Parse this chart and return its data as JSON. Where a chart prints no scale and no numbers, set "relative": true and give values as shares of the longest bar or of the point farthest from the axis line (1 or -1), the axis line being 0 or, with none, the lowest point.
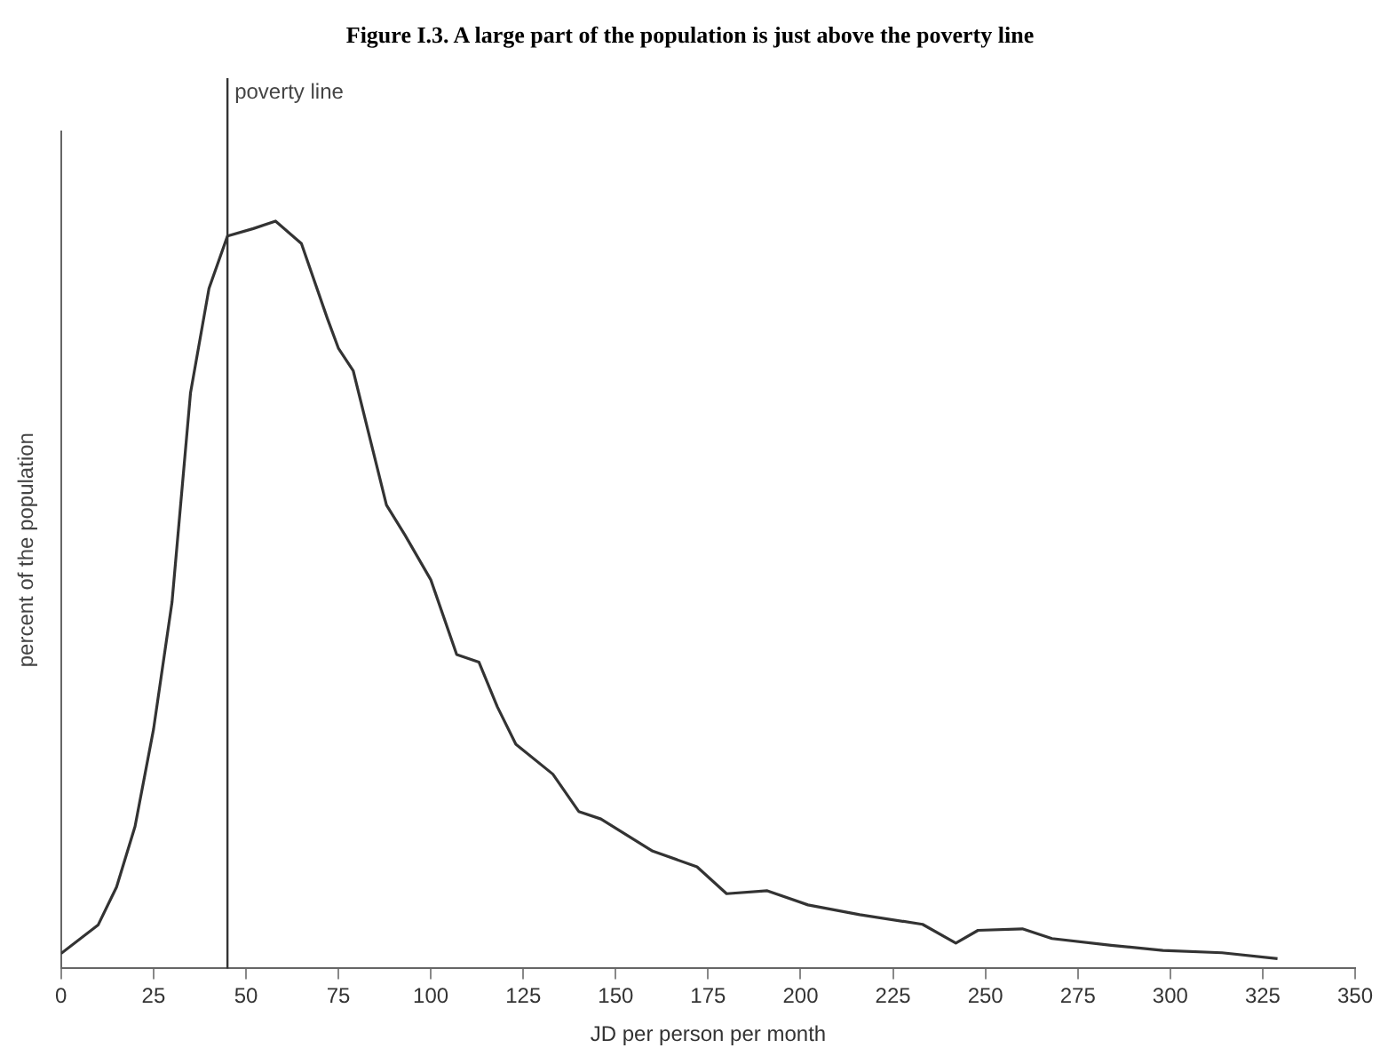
{
  "chart_data": {
    "type": "line",
    "title": "Figure I.3.  A large part of the population is just above the poverty line",
    "xlabel": "JD per person per month",
    "ylabel": "percent of the population",
    "relative": true,
    "xlim": [
      0,
      350
    ],
    "xticks": [
      0,
      25,
      50,
      75,
      100,
      125,
      150,
      175,
      200,
      225,
      250,
      275,
      300,
      325,
      350
    ],
    "grid": false,
    "legend": false,
    "marker": "none",
    "line_style": "solid",
    "ref_lines": [
      {
        "axis": "x",
        "value": 45,
        "label": "poverty line",
        "color": "#333333"
      }
    ],
    "series": [
      {
        "color": "#333333",
        "x": [
          0,
          10,
          15,
          20,
          25,
          30,
          35,
          40,
          45,
          52,
          58,
          65,
          72,
          75,
          79,
          83,
          88,
          93,
          100,
          107,
          113,
          118,
          123,
          133,
          140,
          146,
          160,
          172,
          180,
          191,
          202,
          216,
          233,
          242,
          248,
          260,
          268,
          284,
          298,
          314,
          329
        ],
        "values": [
          0.02,
          0.058,
          0.109,
          0.19,
          0.32,
          0.49,
          0.77,
          0.91,
          0.98,
          0.99,
          1,
          0.97,
          0.87,
          0.83,
          0.8,
          0.72,
          0.62,
          0.58,
          0.52,
          0.42,
          0.41,
          0.35,
          0.3,
          0.26,
          0.21,
          0.2,
          0.157,
          0.136,
          0.1,
          0.104,
          0.085,
          0.072,
          0.059,
          0.034,
          0.051,
          0.053,
          0.04,
          0.031,
          0.024,
          0.021,
          0.013
        ]
      }
    ]
  }
}
